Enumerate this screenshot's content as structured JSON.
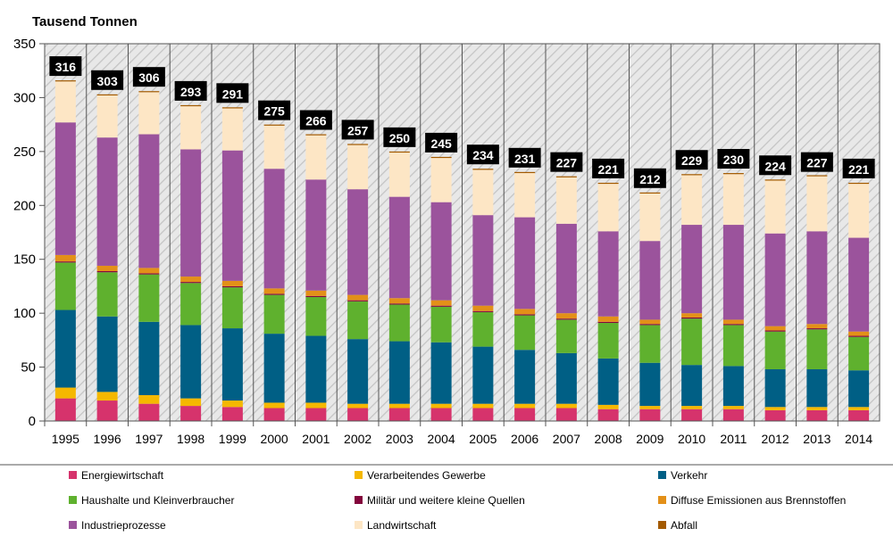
{
  "chart_data": {
    "type": "bar",
    "stacked": true,
    "ylabel": "Tausend Tonnen",
    "ylim": [
      0,
      350
    ],
    "yticks": [
      0,
      50,
      100,
      150,
      200,
      250,
      300,
      350
    ],
    "grid": false,
    "legend_position": "bottom",
    "categories": [
      "1995",
      "1996",
      "1997",
      "1998",
      "1999",
      "2000",
      "2001",
      "2002",
      "2003",
      "2004",
      "2005",
      "2006",
      "2007",
      "2008",
      "2009",
      "2010",
      "2011",
      "2012",
      "2013",
      "2014"
    ],
    "totals": [
      316,
      303,
      306,
      293,
      291,
      275,
      266,
      257,
      250,
      245,
      234,
      231,
      227,
      221,
      212,
      229,
      230,
      224,
      227,
      221
    ],
    "series": [
      {
        "name": "Energiewirtschaft",
        "color": "#d6336c",
        "values": [
          21,
          19,
          16,
          14,
          13,
          12,
          12,
          12,
          12,
          12,
          12,
          12,
          12,
          11,
          11,
          11,
          11,
          10,
          10,
          10
        ]
      },
      {
        "name": "Verarbeitendes Gewerbe",
        "color": "#f5b800",
        "values": [
          10,
          8,
          8,
          7,
          6,
          5,
          5,
          4,
          4,
          4,
          4,
          4,
          4,
          4,
          3,
          3,
          3,
          3,
          3,
          3
        ]
      },
      {
        "name": "Verkehr",
        "color": "#005f85",
        "values": [
          72,
          70,
          68,
          68,
          67,
          64,
          62,
          60,
          58,
          57,
          53,
          50,
          47,
          43,
          40,
          38,
          37,
          35,
          35,
          34
        ]
      },
      {
        "name": "Haushalte und Kleinverbraucher",
        "color": "#5fb12e",
        "values": [
          44,
          41,
          44,
          39,
          38,
          36,
          36,
          35,
          34,
          33,
          32,
          32,
          31,
          33,
          35,
          43,
          38,
          35,
          37,
          31
        ]
      },
      {
        "name": "Militär und weitere kleine Quellen",
        "color": "#83053c",
        "values": [
          1,
          1,
          1,
          1,
          1,
          1,
          1,
          1,
          1,
          1,
          1,
          1,
          1,
          1,
          1,
          1,
          1,
          1,
          1,
          1
        ]
      },
      {
        "name": "Diffuse Emissionen aus Brennstoffen",
        "color": "#e39018",
        "values": [
          6,
          5,
          5,
          5,
          5,
          5,
          5,
          5,
          5,
          5,
          5,
          5,
          5,
          5,
          4,
          4,
          4,
          4,
          4,
          4
        ]
      },
      {
        "name": "Industrieprozesse",
        "color": "#9b539c",
        "values": [
          123,
          119,
          124,
          118,
          121,
          111,
          103,
          98,
          94,
          91,
          84,
          85,
          83,
          79,
          73,
          82,
          88,
          86,
          86,
          87
        ]
      },
      {
        "name": "Landwirtschaft",
        "color": "#fde6c5",
        "values": [
          38,
          39,
          39,
          40,
          39,
          40,
          41,
          41,
          41,
          41,
          42,
          41,
          43,
          44,
          44,
          46,
          47,
          49,
          51,
          50
        ]
      },
      {
        "name": "Abfall",
        "color": "#a35a00",
        "values": [
          1,
          1,
          1,
          1,
          1,
          1,
          1,
          1,
          1,
          1,
          1,
          1,
          1,
          1,
          1,
          1,
          1,
          1,
          1,
          1
        ]
      }
    ]
  }
}
